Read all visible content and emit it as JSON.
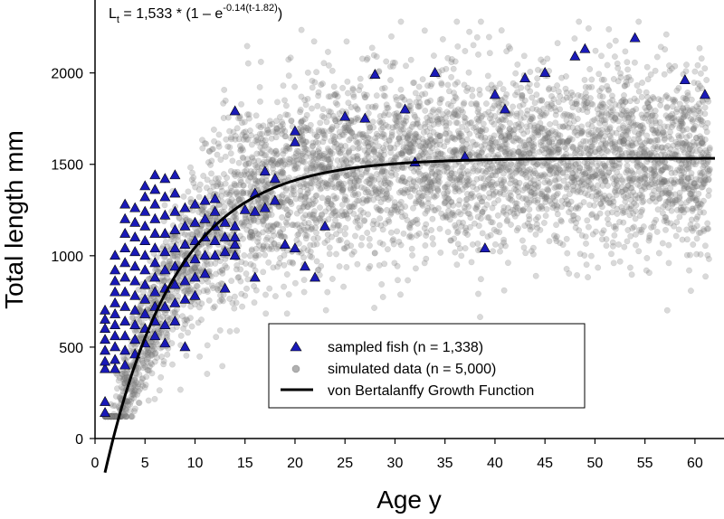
{
  "chart_data": {
    "type": "scatter",
    "xlabel": "Age y",
    "ylabel": "Total length mm",
    "xlim": [
      0,
      62
    ],
    "ylim": [
      0,
      2300
    ],
    "x_ticks": [
      "0",
      "5",
      "10",
      "15",
      "20",
      "25",
      "30",
      "35",
      "40",
      "45",
      "50",
      "55",
      "60"
    ],
    "y_ticks": [
      "0",
      "500",
      "1000",
      "1500",
      "2000"
    ],
    "equation": {
      "prefix": "L",
      "subscript": "t",
      "body": " = 1,533 * (1 – e",
      "exponent": "-0.14(t-1.82)",
      "suffix": ")"
    },
    "vbgf": {
      "Linf": 1533,
      "k": 0.14,
      "t0": 1.82,
      "t_start": 1,
      "t_end": 62
    },
    "simulated": {
      "n": 5000,
      "sd": 250,
      "color": "#808080"
    },
    "sampled_fish": {
      "color": "#1a1ab8",
      "points": [
        [
          1,
          140
        ],
        [
          1,
          200
        ],
        [
          1,
          380
        ],
        [
          1,
          420
        ],
        [
          1,
          480
        ],
        [
          1,
          540
        ],
        [
          1,
          600
        ],
        [
          1,
          650
        ],
        [
          1,
          700
        ],
        [
          2,
          380
        ],
        [
          2,
          430
        ],
        [
          2,
          500
        ],
        [
          2,
          560
        ],
        [
          2,
          620
        ],
        [
          2,
          680
        ],
        [
          2,
          740
        ],
        [
          2,
          800
        ],
        [
          2,
          860
        ],
        [
          2,
          920
        ],
        [
          2,
          1000
        ],
        [
          3,
          400
        ],
        [
          3,
          480
        ],
        [
          3,
          560
        ],
        [
          3,
          640
        ],
        [
          3,
          720
        ],
        [
          3,
          800
        ],
        [
          3,
          880
        ],
        [
          3,
          960
        ],
        [
          3,
          1040
        ],
        [
          3,
          1120
        ],
        [
          3,
          1200
        ],
        [
          3,
          1280
        ],
        [
          4,
          460
        ],
        [
          4,
          540
        ],
        [
          4,
          620
        ],
        [
          4,
          700
        ],
        [
          4,
          780
        ],
        [
          4,
          860
        ],
        [
          4,
          940
        ],
        [
          4,
          1020
        ],
        [
          4,
          1100
        ],
        [
          4,
          1180
        ],
        [
          4,
          1260
        ],
        [
          5,
          520
        ],
        [
          5,
          600
        ],
        [
          5,
          680
        ],
        [
          5,
          760
        ],
        [
          5,
          840
        ],
        [
          5,
          920
        ],
        [
          5,
          1000
        ],
        [
          5,
          1080
        ],
        [
          5,
          1160
        ],
        [
          5,
          1240
        ],
        [
          5,
          1320
        ],
        [
          5,
          1380
        ],
        [
          6,
          560
        ],
        [
          6,
          640
        ],
        [
          6,
          720
        ],
        [
          6,
          800
        ],
        [
          6,
          880
        ],
        [
          6,
          960
        ],
        [
          6,
          1040
        ],
        [
          6,
          1120
        ],
        [
          6,
          1200
        ],
        [
          6,
          1280
        ],
        [
          6,
          1360
        ],
        [
          6,
          1440
        ],
        [
          7,
          520
        ],
        [
          7,
          620
        ],
        [
          7,
          720
        ],
        [
          7,
          820
        ],
        [
          7,
          920
        ],
        [
          7,
          1020
        ],
        [
          7,
          1120
        ],
        [
          7,
          1220
        ],
        [
          7,
          1320
        ],
        [
          7,
          1420
        ],
        [
          8,
          640
        ],
        [
          8,
          740
        ],
        [
          8,
          840
        ],
        [
          8,
          940
        ],
        [
          8,
          1040
        ],
        [
          8,
          1140
        ],
        [
          8,
          1240
        ],
        [
          8,
          1340
        ],
        [
          8,
          1440
        ],
        [
          9,
          500
        ],
        [
          9,
          760
        ],
        [
          9,
          860
        ],
        [
          9,
          960
        ],
        [
          9,
          1060
        ],
        [
          9,
          1160
        ],
        [
          9,
          1260
        ],
        [
          10,
          780
        ],
        [
          10,
          880
        ],
        [
          10,
          980
        ],
        [
          10,
          1080
        ],
        [
          10,
          1180
        ],
        [
          10,
          1280
        ],
        [
          11,
          900
        ],
        [
          11,
          1000
        ],
        [
          11,
          1100
        ],
        [
          11,
          1200
        ],
        [
          11,
          1300
        ],
        [
          12,
          1000
        ],
        [
          12,
          1080
        ],
        [
          12,
          1160
        ],
        [
          12,
          1240
        ],
        [
          12,
          1310
        ],
        [
          13,
          820
        ],
        [
          13,
          1020
        ],
        [
          13,
          1100
        ],
        [
          13,
          1180
        ],
        [
          14,
          1000
        ],
        [
          14,
          1060
        ],
        [
          14,
          1100
        ],
        [
          14,
          1160
        ],
        [
          14,
          1790
        ],
        [
          15,
          1250
        ],
        [
          16,
          880
        ],
        [
          16,
          1240
        ],
        [
          16,
          1340
        ],
        [
          17,
          1260
        ],
        [
          17,
          1460
        ],
        [
          18,
          1300
        ],
        [
          18,
          1420
        ],
        [
          19,
          1060
        ],
        [
          20,
          1040
        ],
        [
          20,
          1680
        ],
        [
          20,
          1620
        ],
        [
          21,
          940
        ],
        [
          22,
          880
        ],
        [
          23,
          1160
        ],
        [
          25,
          1760
        ],
        [
          27,
          1750
        ],
        [
          28,
          1990
        ],
        [
          31,
          1800
        ],
        [
          32,
          1510
        ],
        [
          34,
          2000
        ],
        [
          37,
          1540
        ],
        [
          39,
          1040
        ],
        [
          40,
          1880
        ],
        [
          41,
          1800
        ],
        [
          43,
          1970
        ],
        [
          45,
          2000
        ],
        [
          48,
          2090
        ],
        [
          49,
          2130
        ],
        [
          54,
          2190
        ],
        [
          59,
          1960
        ],
        [
          61,
          1880
        ]
      ]
    },
    "legend": [
      {
        "marker": "triangle",
        "label": "sampled fish (n = 1,338)"
      },
      {
        "marker": "circle",
        "label": "simulated data (n = 5,000)"
      },
      {
        "marker": "line",
        "label": "von Bertalanffy Growth Function"
      }
    ],
    "legend_position": "lower-center"
  }
}
